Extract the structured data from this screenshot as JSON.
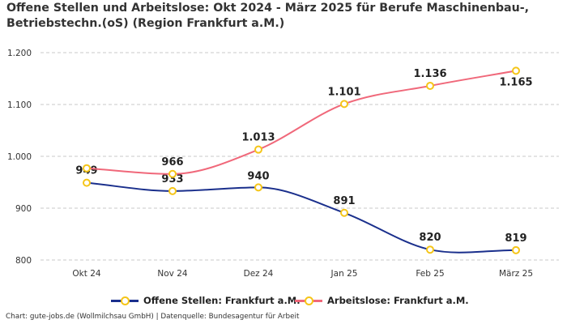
{
  "chart_data": {
    "type": "line",
    "title": "Offene Stellen und Arbeitslose: Okt 2024 - März 2025 für Berufe Maschinenbau-, Betriebstechn.(oS) (Region Frankfurt a.M.)",
    "categories": [
      "Okt 24",
      "Nov 24",
      "Dez 24",
      "Jan 25",
      "Feb 25",
      "März 25"
    ],
    "ylim": [
      780,
      1230
    ],
    "yticks": [
      800,
      900,
      1000,
      1100,
      1200
    ],
    "ytick_labels": [
      "800",
      "900",
      "1.000",
      "1.100",
      "1.200"
    ],
    "grid": true,
    "series": [
      {
        "name": "Offene Stellen: Frankfurt a.M.",
        "color": "#1a2f8c",
        "values": [
          949,
          933,
          940,
          891,
          820,
          819
        ],
        "labels": [
          "949",
          "933",
          "940",
          "891",
          "820",
          "819"
        ]
      },
      {
        "name": "Arbeitslose: Frankfurt a.M.",
        "color": "#f0687a",
        "values": [
          977,
          966,
          1013,
          1101,
          1136,
          1165
        ],
        "labels": [
          "",
          "966",
          "1.013",
          "1.101",
          "1.136",
          "1.165"
        ]
      }
    ],
    "marker_color": "#f5c518",
    "legend_position": "bottom"
  },
  "source_text": "Chart: gute-jobs.de (Wollmilchsau GmbH) | Datenquelle: Bundesagentur für Arbeit"
}
